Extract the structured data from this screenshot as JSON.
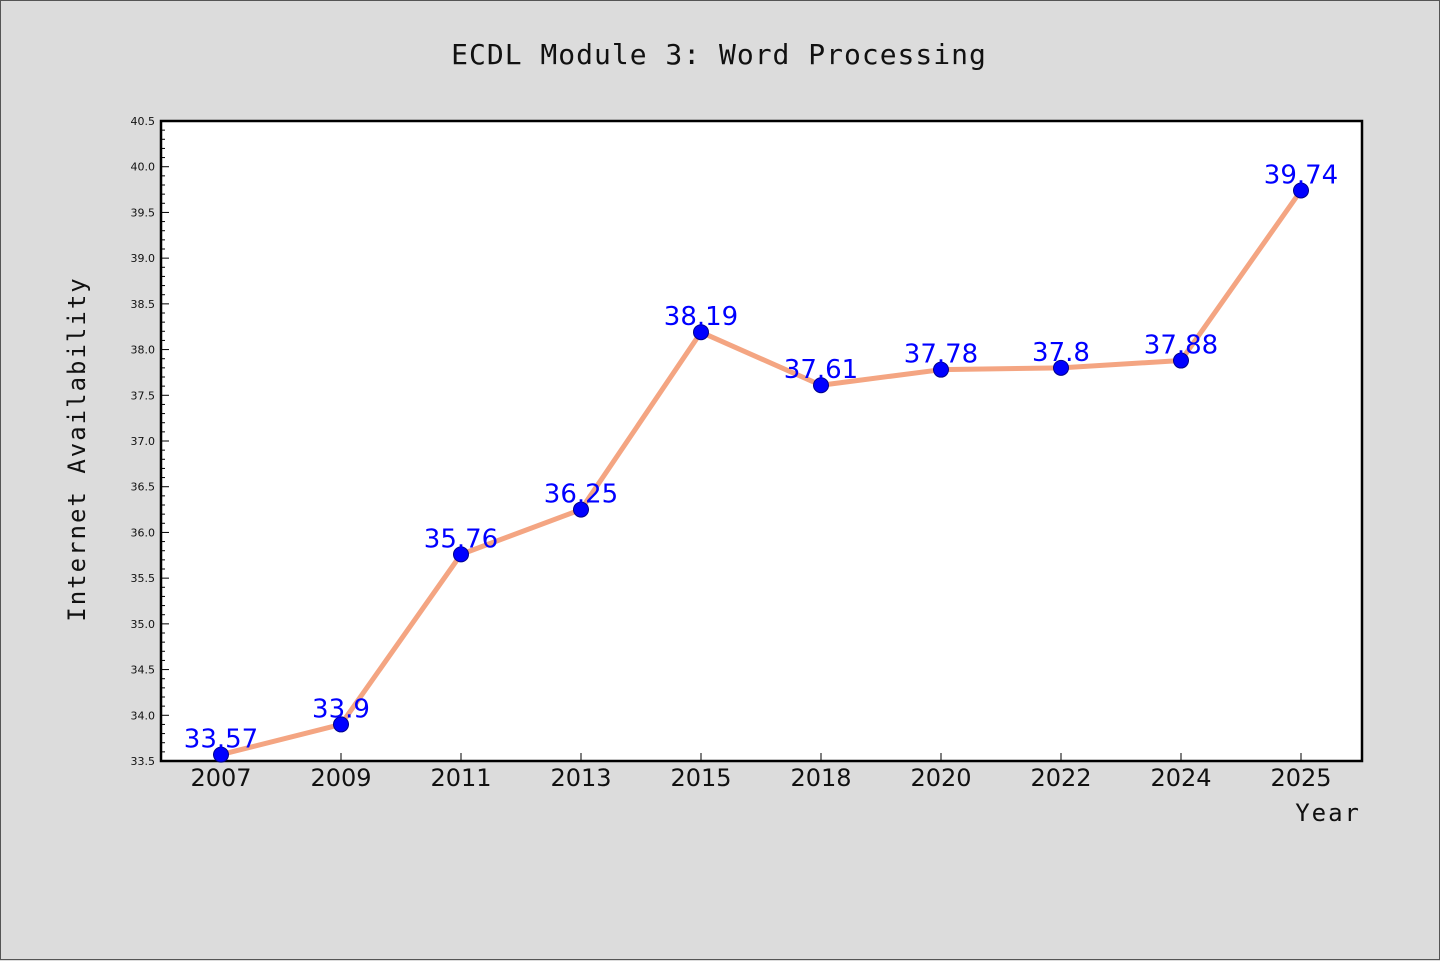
{
  "chart_data": {
    "type": "line",
    "title": "ECDL Module 3: Word Processing",
    "xlabel": "Year",
    "ylabel": "Internet Availability",
    "categories": [
      "2007",
      "2009",
      "2011",
      "2013",
      "2015",
      "2018",
      "2020",
      "2022",
      "2024",
      "2025"
    ],
    "values": [
      33.57,
      33.9,
      35.76,
      36.25,
      38.19,
      37.61,
      37.78,
      37.8,
      37.88,
      39.74
    ],
    "data_labels": [
      "33.57",
      "33.9",
      "35.76",
      "36.25",
      "38.19",
      "37.61",
      "37.78",
      "37.8",
      "37.88",
      "39.74"
    ],
    "ylim": [
      33.5,
      40.5
    ],
    "yticks": [
      "33.5",
      "34.0",
      "34.5",
      "35.0",
      "35.5",
      "36.0",
      "36.5",
      "37.0",
      "37.5",
      "38.0",
      "38.5",
      "39.0",
      "39.5",
      "40.0",
      "40.5"
    ],
    "grid": false,
    "legend": "none",
    "colors": {
      "line": "#f4a582",
      "marker": "#0000ff",
      "label": "#0000ff",
      "background": "#dcdcdc",
      "plot_background": "#ffffff"
    }
  }
}
